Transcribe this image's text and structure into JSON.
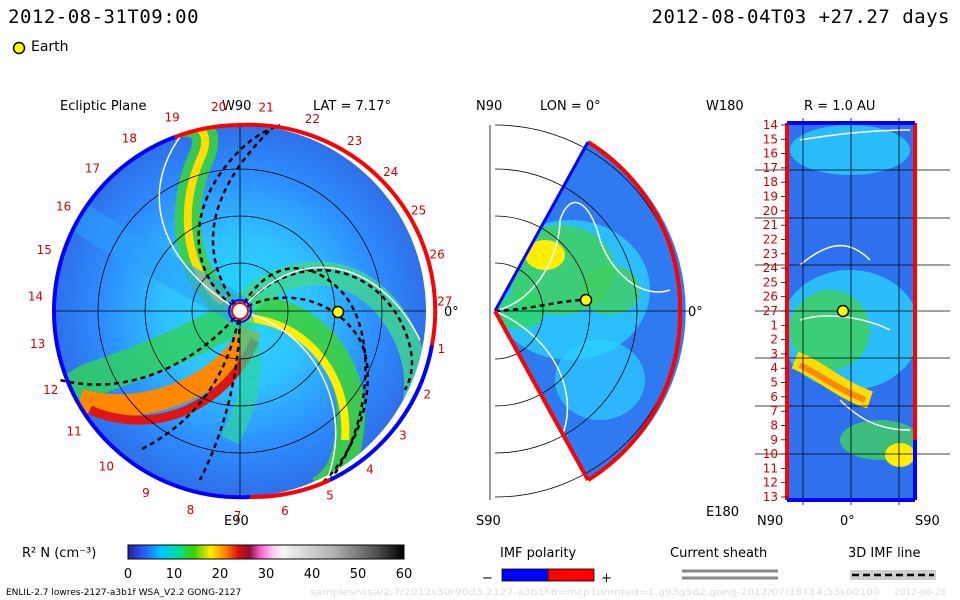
{
  "header": {
    "left_time": "2012-08-31T09:00",
    "right_time": "2012-08-04T03 +27.27 days"
  },
  "legend_earth": "Earth",
  "ecliptic": {
    "title": "Ecliptic Plane",
    "lat": "LAT = 7.17°",
    "top_label": "W90",
    "bottom_label": "E90",
    "zero_label": "0°",
    "carrington_labels": [
      "20",
      "21",
      "22",
      "23",
      "24",
      "25",
      "26",
      "27",
      "1",
      "2",
      "3",
      "4",
      "5",
      "6",
      "7",
      "8",
      "9",
      "10",
      "11",
      "12",
      "13",
      "14",
      "15",
      "16",
      "17",
      "18",
      "19"
    ]
  },
  "meridional": {
    "lon": "LON = 0°",
    "top_label": "N90",
    "bottom_label": "S90",
    "zero_label": "0°"
  },
  "radial": {
    "r": "R = 1.0 AU",
    "top_label": "W180",
    "bottom_label": "E180",
    "x_left": "N90",
    "x_mid": "0°",
    "x_right": "S90",
    "rows": [
      "14",
      "15",
      "16",
      "17",
      "18",
      "19",
      "20",
      "21",
      "22",
      "23",
      "24",
      "25",
      "26",
      "27",
      "1",
      "2",
      "3",
      "4",
      "5",
      "6",
      "7",
      "8",
      "9",
      "10",
      "11",
      "12",
      "13"
    ]
  },
  "colorbar": {
    "label": "R² N (cm⁻³)",
    "ticks": [
      "0",
      "10",
      "20",
      "30",
      "40",
      "50",
      "60"
    ],
    "range": [
      0,
      60
    ]
  },
  "imf": {
    "title": "IMF polarity",
    "minus": "−",
    "plus": "+"
  },
  "current_sheath": "Current sheath",
  "imf_line": "3D IMF line",
  "footer": "ENLIL-2.7 lowres-2127-a3b1f WSA_V2.2 GONG-2127",
  "footer_faint": "samples/wsa/2.7/2012s30r90d3.2127-a3b1f.8=mcp1umnted=1.g93g5d2.gong-2012/07/18T14:53s00100",
  "footer_date": "2012-08-26",
  "colors": {
    "polarity_negative": "#0000ff",
    "polarity_positive": "#ff0000",
    "earth": "#ffff00"
  }
}
